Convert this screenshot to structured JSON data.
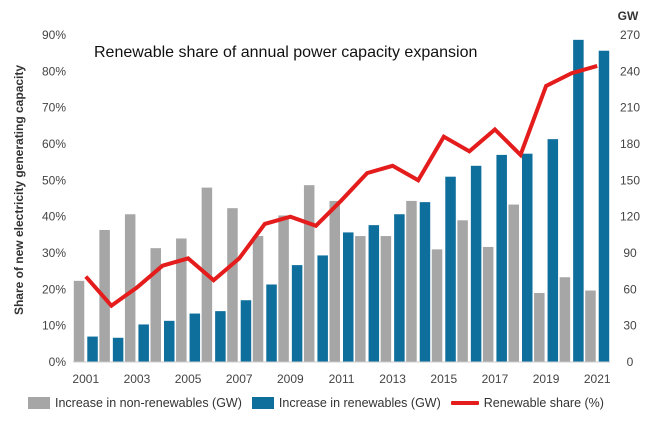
{
  "chart_data": {
    "type": "bar",
    "title": "Renewable share of annual power capacity expansion",
    "ylabel": "Share of new electricity generating capacity",
    "y2label": "GW",
    "categories": [
      "2001",
      "2002",
      "2003",
      "2004",
      "2005",
      "2006",
      "2007",
      "2008",
      "2009",
      "2010",
      "2011",
      "2012",
      "2013",
      "2014",
      "2015",
      "2016",
      "2017",
      "2018",
      "2019",
      "2020",
      "2021"
    ],
    "x_tick_labels": [
      "2001",
      "2003",
      "2005",
      "2007",
      "2009",
      "2011",
      "2013",
      "2015",
      "2017",
      "2019",
      "2021"
    ],
    "y_ticks": [
      "0%",
      "10%",
      "20%",
      "30%",
      "40%",
      "50%",
      "60%",
      "70%",
      "80%",
      "90%"
    ],
    "y2_ticks": [
      "0",
      "30",
      "60",
      "90",
      "120",
      "150",
      "180",
      "210",
      "240",
      "270"
    ],
    "ylim": [
      0,
      90
    ],
    "y2lim": [
      0,
      270
    ],
    "series": [
      {
        "name": "Increase in non-renewables (GW)",
        "axis": "right",
        "render": "bar",
        "color": "#a6a6a6",
        "values": [
          67,
          109,
          122,
          94,
          102,
          144,
          127,
          104,
          121,
          146,
          133,
          104,
          104,
          133,
          93,
          117,
          95,
          130,
          57,
          70,
          59
        ]
      },
      {
        "name": "Increase in renewables (GW)",
        "axis": "right",
        "render": "bar",
        "color": "#0e6e9c",
        "values": [
          21,
          20,
          31,
          34,
          40,
          42,
          51,
          64,
          80,
          88,
          107,
          113,
          122,
          132,
          153,
          162,
          171,
          172,
          184,
          266,
          257
        ]
      },
      {
        "name": "Renewable share (%)",
        "axis": "left",
        "render": "line",
        "color": "#e41c1c",
        "values": [
          23.5,
          15.5,
          20.5,
          26.5,
          28.5,
          22.5,
          28.5,
          38.0,
          40.0,
          37.5,
          44.5,
          52.0,
          54.0,
          50.0,
          62.0,
          58.0,
          64.0,
          57.0,
          76.0,
          79.5,
          81.5
        ]
      }
    ],
    "legend_position": "bottom",
    "grid": false
  }
}
